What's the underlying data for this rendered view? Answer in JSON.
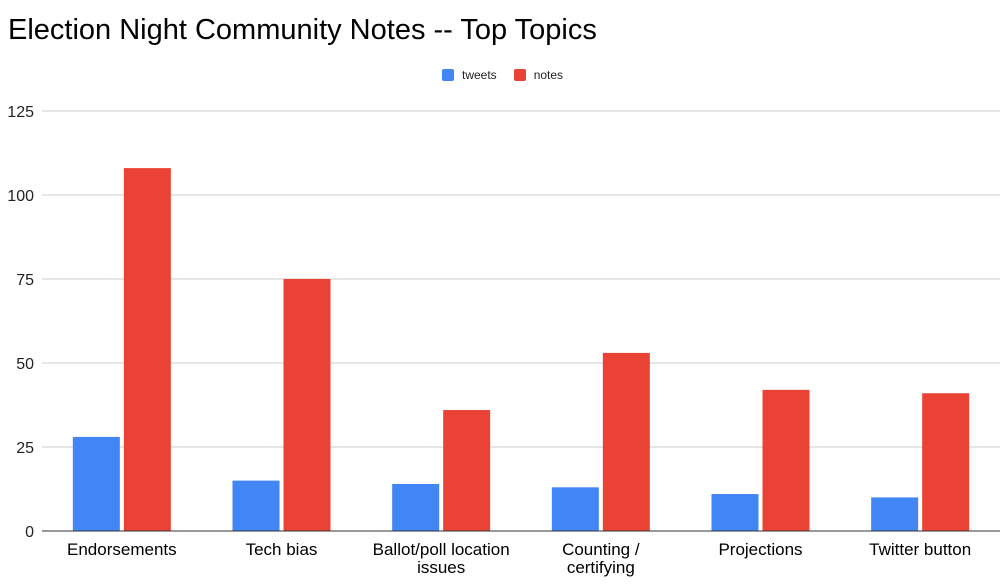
{
  "chart_data": {
    "type": "bar",
    "title": "Election Night Community Notes -- Top Topics",
    "categories": [
      [
        "Endorsements"
      ],
      [
        "Tech bias"
      ],
      [
        "Ballot/poll location",
        "issues"
      ],
      [
        "Counting /",
        "certifying"
      ],
      [
        "Projections"
      ],
      [
        "Twitter button"
      ]
    ],
    "series": [
      {
        "name": "tweets",
        "color": "#4285f4",
        "values": [
          28,
          15,
          14,
          13,
          11,
          10
        ]
      },
      {
        "name": "notes",
        "color": "#ea4335",
        "values": [
          108,
          75,
          36,
          53,
          42,
          41
        ]
      }
    ],
    "ylim": [
      0,
      125
    ],
    "yticks": [
      0,
      25,
      50,
      75,
      100,
      125
    ],
    "grid": true,
    "legend_position": "top-center",
    "xlabel": "",
    "ylabel": ""
  }
}
